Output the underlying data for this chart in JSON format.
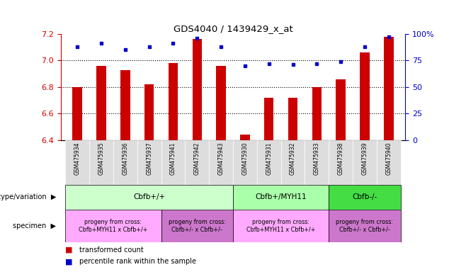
{
  "title": "GDS4040 / 1439429_x_at",
  "samples": [
    "GSM475934",
    "GSM475935",
    "GSM475936",
    "GSM475937",
    "GSM475941",
    "GSM475942",
    "GSM475943",
    "GSM475930",
    "GSM475931",
    "GSM475932",
    "GSM475933",
    "GSM475938",
    "GSM475939",
    "GSM475940"
  ],
  "red_values": [
    6.8,
    6.96,
    6.93,
    6.82,
    6.98,
    7.16,
    6.96,
    6.44,
    6.72,
    6.72,
    6.8,
    6.86,
    7.06,
    7.18
  ],
  "blue_values": [
    88,
    91,
    85,
    88,
    91,
    96,
    88,
    70,
    72,
    71,
    72,
    74,
    88,
    97
  ],
  "ylim": [
    6.4,
    7.2
  ],
  "y2lim": [
    0,
    100
  ],
  "yticks": [
    6.4,
    6.6,
    6.8,
    7.0,
    7.2
  ],
  "y2ticks": [
    0,
    25,
    50,
    75,
    100
  ],
  "dotted_lines": [
    6.6,
    6.8,
    7.0
  ],
  "genotype_groups": [
    {
      "label": "Cbfb+/+",
      "start": 0,
      "end": 7,
      "color": "#ccffcc"
    },
    {
      "label": "Cbfb+/MYH11",
      "start": 7,
      "end": 11,
      "color": "#aaffaa"
    },
    {
      "label": "Cbfb-/-",
      "start": 11,
      "end": 14,
      "color": "#44dd44"
    }
  ],
  "specimen_groups": [
    {
      "label": "progeny from cross:\nCbfb+MYH11 x Cbfb+/+",
      "start": 0,
      "end": 4,
      "color": "#ffaaff"
    },
    {
      "label": "progeny from cross:\nCbfb+/- x Cbfb+/-",
      "start": 4,
      "end": 7,
      "color": "#cc77cc"
    },
    {
      "label": "progeny from cross:\nCbfb+MYH11 x Cbfb+/+",
      "start": 7,
      "end": 11,
      "color": "#ffaaff"
    },
    {
      "label": "progeny from cross:\nCbfb+/- x Cbfb+/-",
      "start": 11,
      "end": 14,
      "color": "#cc77cc"
    }
  ],
  "bar_color": "#cc0000",
  "dot_color": "#0000cc",
  "bar_width": 0.4,
  "left_label_color": "#cc0000",
  "right_label_color": "#0000cc",
  "bg_color": "#ffffff",
  "tick_label_color": "#444444",
  "xtick_bg": "#dddddd"
}
